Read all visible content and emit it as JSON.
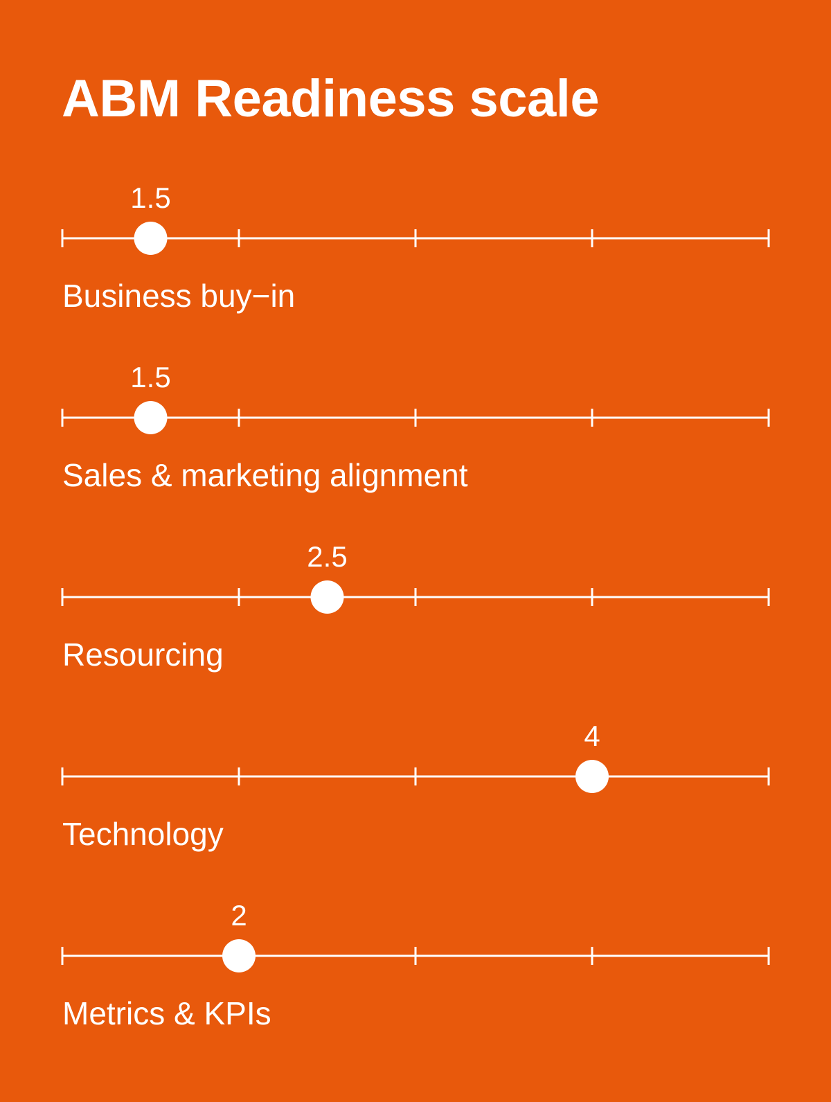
{
  "colors": {
    "background": "#E8590C",
    "foreground": "#FFFFFF"
  },
  "chart_data": {
    "type": "scatter",
    "title": "ABM Readiness scale",
    "xlim": [
      1,
      5
    ],
    "ticks": [
      1,
      2,
      3,
      4,
      5
    ],
    "categories": [
      "Business buy−in",
      "Sales & marketing alignment",
      "Resourcing",
      "Technology",
      "Metrics & KPIs"
    ],
    "values": [
      1.5,
      1.5,
      2.5,
      4,
      2
    ],
    "value_labels": [
      "1.5",
      "1.5",
      "2.5",
      "4",
      "2"
    ]
  }
}
